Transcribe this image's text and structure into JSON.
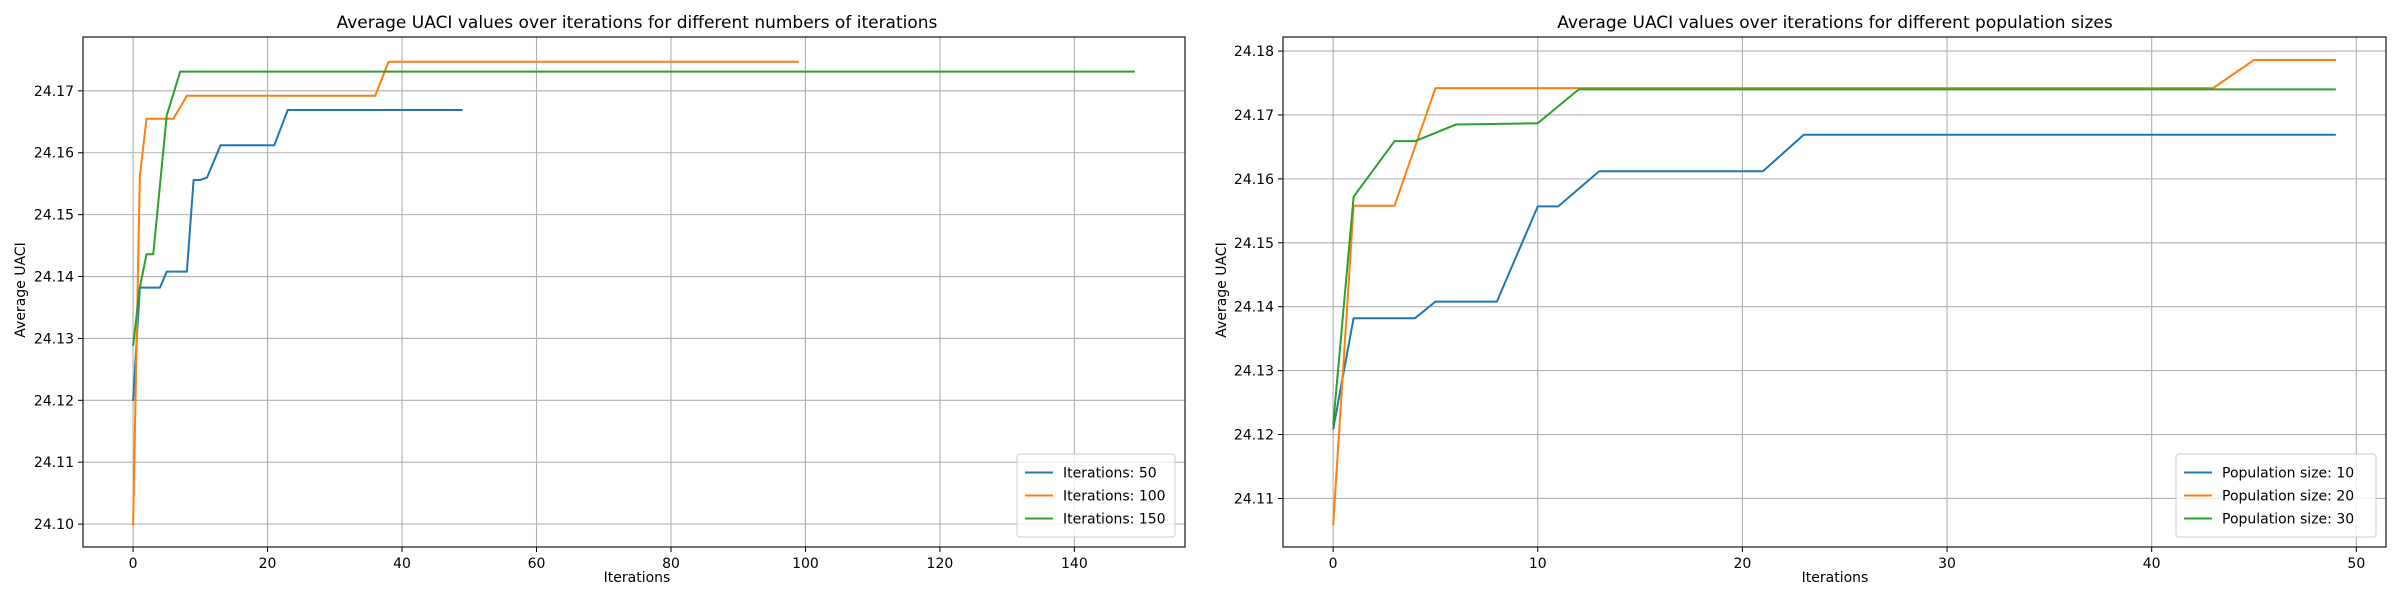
{
  "chart_data": [
    {
      "type": "line",
      "title": "Average UACI values over iterations for different numbers of iterations",
      "xlabel": "Iterations",
      "ylabel": "Average UACI",
      "xlim": [
        -7.45,
        156.45
      ],
      "ylim": [
        24.0963,
        24.1787
      ],
      "xticks": [
        0,
        20,
        40,
        60,
        80,
        100,
        120,
        140
      ],
      "yticks": [
        24.1,
        24.11,
        24.12,
        24.13,
        24.14,
        24.15,
        24.16,
        24.17
      ],
      "ytick_labels": [
        "24.10",
        "24.11",
        "24.12",
        "24.13",
        "24.14",
        "24.15",
        "24.16",
        "24.17"
      ],
      "grid": true,
      "legend_position": "lower right",
      "series": [
        {
          "name": "Iterations: 50",
          "color": "#1f77b4",
          "points": [
            [
              0,
              24.1199
            ],
            [
              1,
              24.1382
            ],
            [
              4,
              24.1382
            ],
            [
              5,
              24.1408
            ],
            [
              8,
              24.1408
            ],
            [
              9,
              24.1556
            ],
            [
              10,
              24.1556
            ],
            [
              11,
              24.156
            ],
            [
              13,
              24.1612
            ],
            [
              21,
              24.1612
            ],
            [
              23,
              24.1669
            ],
            [
              49,
              24.1669
            ]
          ]
        },
        {
          "name": "Iterations: 100",
          "color": "#ff7f0e",
          "points": [
            [
              0,
              24.0998
            ],
            [
              1,
              24.1562
            ],
            [
              2,
              24.1655
            ],
            [
              6,
              24.1655
            ],
            [
              8,
              24.1692
            ],
            [
              36,
              24.1692
            ],
            [
              38,
              24.1747
            ],
            [
              99,
              24.1747
            ]
          ]
        },
        {
          "name": "Iterations: 150",
          "color": "#2ca02c",
          "points": [
            [
              0,
              24.1288
            ],
            [
              1,
              24.1382
            ],
            [
              2,
              24.1436
            ],
            [
              3,
              24.1436
            ],
            [
              5,
              24.166
            ],
            [
              7,
              24.1731
            ],
            [
              149,
              24.1731
            ]
          ]
        }
      ]
    },
    {
      "type": "line",
      "title": "Average UACI values over iterations for different population sizes",
      "xlabel": "Iterations",
      "ylabel": "Average UACI",
      "xlim": [
        -2.45,
        51.45
      ],
      "ylim": [
        24.1024,
        24.1822
      ],
      "xticks": [
        0,
        10,
        20,
        30,
        40,
        50
      ],
      "yticks": [
        24.11,
        24.12,
        24.13,
        24.14,
        24.15,
        24.16,
        24.17,
        24.18
      ],
      "ytick_labels": [
        "24.11",
        "24.12",
        "24.13",
        "24.14",
        "24.15",
        "24.16",
        "24.17",
        "24.18"
      ],
      "grid": true,
      "legend_position": "lower right",
      "series": [
        {
          "name": "Population size: 10",
          "color": "#1f77b4",
          "points": [
            [
              0,
              24.1208
            ],
            [
              1,
              24.1382
            ],
            [
              4,
              24.1382
            ],
            [
              5,
              24.1408
            ],
            [
              8,
              24.1408
            ],
            [
              10,
              24.1557
            ],
            [
              11,
              24.1557
            ],
            [
              13,
              24.1612
            ],
            [
              21,
              24.1612
            ],
            [
              23,
              24.1669
            ],
            [
              49,
              24.1669
            ]
          ]
        },
        {
          "name": "Population size: 20",
          "color": "#ff7f0e",
          "points": [
            [
              0,
              24.1058
            ],
            [
              1,
              24.1558
            ],
            [
              3,
              24.1558
            ],
            [
              5,
              24.1742
            ],
            [
              43,
              24.1742
            ],
            [
              45,
              24.1786
            ],
            [
              49,
              24.1786
            ]
          ]
        },
        {
          "name": "Population size: 30",
          "color": "#2ca02c",
          "points": [
            [
              0,
              24.1215
            ],
            [
              1,
              24.1572
            ],
            [
              3,
              24.1659
            ],
            [
              4,
              24.1659
            ],
            [
              6,
              24.1685
            ],
            [
              10,
              24.1687
            ],
            [
              12,
              24.174
            ],
            [
              49,
              24.174
            ]
          ]
        }
      ]
    }
  ]
}
